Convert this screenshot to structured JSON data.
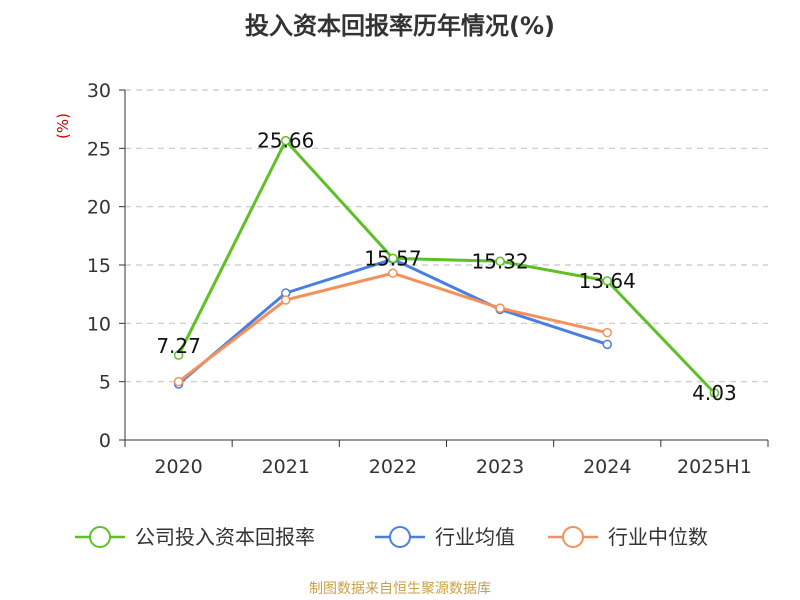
{
  "chart_data": {
    "type": "line",
    "title": "投入资本回报率历年情况(%)",
    "ylabel": "(%)",
    "categories": [
      "2020",
      "2021",
      "2022",
      "2023",
      "2024",
      "2025H1"
    ],
    "ylim": [
      0,
      30
    ],
    "yticks": [
      0,
      5,
      10,
      15,
      20,
      25,
      30
    ],
    "grid": "horizontal-dashed",
    "legend_position": "bottom",
    "series": [
      {
        "name": "公司投入资本回报率",
        "color": "#5ec027",
        "values": [
          7.27,
          25.66,
          15.57,
          15.32,
          13.64,
          4.03
        ],
        "labels": [
          "7.27",
          "25.66",
          "15.57",
          "15.32",
          "13.64",
          "4.03"
        ]
      },
      {
        "name": "行业均值",
        "color": "#4a7fe0",
        "values": [
          4.8,
          12.6,
          15.5,
          11.2,
          8.2,
          null
        ]
      },
      {
        "name": "行业中位数",
        "color": "#f5905a",
        "values": [
          5.0,
          12.0,
          14.3,
          11.3,
          9.2,
          null
        ]
      }
    ],
    "ylabel_color": "#cc0000"
  },
  "source": "制图数据来自恒生聚源数据库"
}
